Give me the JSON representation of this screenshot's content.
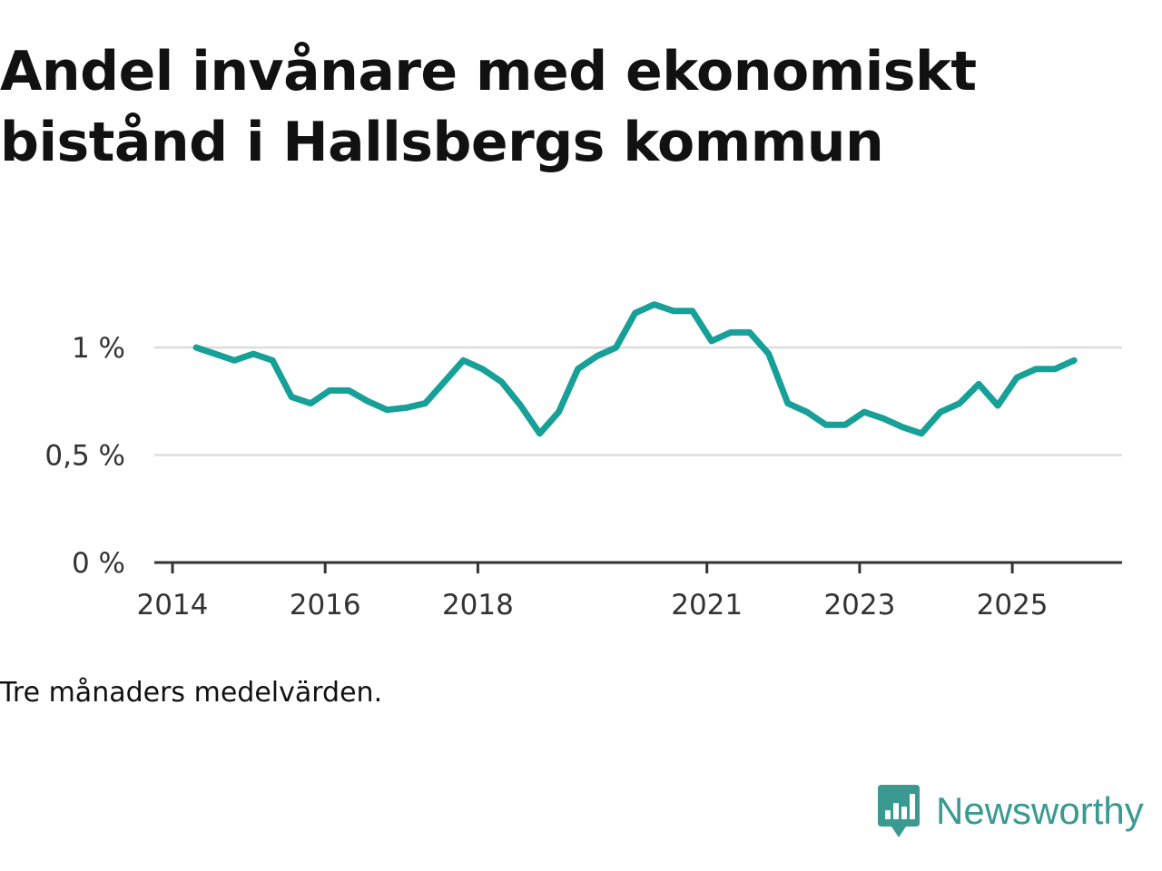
{
  "title": "Andel invånare med ekonomiskt bistånd i Hallsbergs kommun",
  "note": "Tre månaders medelvärden.",
  "brand": {
    "name": "Newsworthy",
    "icon": "newsworthy-logo-icon",
    "color": "#3a9a92"
  },
  "chart_data": {
    "type": "line",
    "title": "Andel invånare med ekonomiskt bistånd i Hallsbergs kommun",
    "xlabel": "",
    "ylabel": "",
    "ylim": [
      0,
      1.25
    ],
    "xlim": [
      2014.0,
      2026.6
    ],
    "grid": true,
    "line_color": "#16a097",
    "y_ticks": [
      {
        "value": 0,
        "label": "0 %"
      },
      {
        "value": 0.5,
        "label": "0,5 %"
      },
      {
        "value": 1,
        "label": "1 %"
      }
    ],
    "x_ticks": [
      {
        "value": 2014,
        "label": "2014"
      },
      {
        "value": 2016,
        "label": "2016"
      },
      {
        "value": 2018,
        "label": "2018"
      },
      {
        "value": 2021,
        "label": "2021"
      },
      {
        "value": 2023,
        "label": "2023"
      },
      {
        "value": 2025,
        "label": "2025"
      }
    ],
    "series": [
      {
        "name": "Andel invånare med ekonomiskt bistånd",
        "x": [
          2014.31,
          2014.56,
          2014.81,
          2015.06,
          2015.31,
          2015.56,
          2015.81,
          2016.06,
          2016.31,
          2016.56,
          2016.81,
          2017.06,
          2017.31,
          2017.56,
          2017.81,
          2018.06,
          2018.31,
          2018.56,
          2018.81,
          2019.06,
          2019.31,
          2019.56,
          2019.81,
          2020.06,
          2020.31,
          2020.56,
          2020.81,
          2021.06,
          2021.31,
          2021.56,
          2021.81,
          2022.06,
          2022.31,
          2022.56,
          2022.81,
          2023.06,
          2023.31,
          2023.56,
          2023.81,
          2024.06,
          2024.31,
          2024.56,
          2024.81,
          2025.06,
          2025.31,
          2025.56,
          2025.81
        ],
        "values": [
          1.0,
          0.97,
          0.94,
          0.97,
          0.94,
          0.77,
          0.74,
          0.8,
          0.8,
          0.75,
          0.71,
          0.72,
          0.74,
          0.84,
          0.94,
          0.9,
          0.84,
          0.73,
          0.6,
          0.7,
          0.9,
          0.96,
          1.0,
          1.16,
          1.2,
          1.17,
          1.17,
          1.03,
          1.07,
          1.07,
          0.97,
          0.74,
          0.7,
          0.64,
          0.64,
          0.7,
          0.67,
          0.63,
          0.6,
          0.7,
          0.74,
          0.83,
          0.73,
          0.86,
          0.9,
          0.9,
          0.94
        ]
      }
    ]
  }
}
